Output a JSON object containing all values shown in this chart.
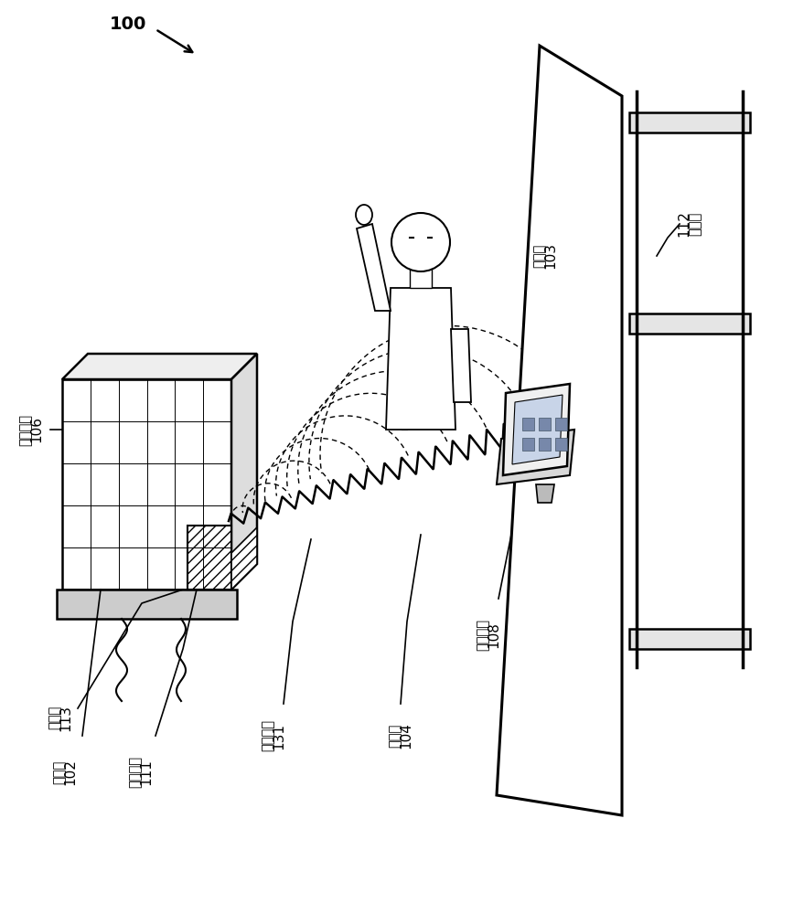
{
  "bg_color": "#ffffff",
  "line_color": "#000000",
  "text_transmitter": "发射机",
  "text_antenna": "天线阵列",
  "text_sensor": "传感器",
  "text_comm_comp": "通信部件",
  "text_power_wave": "功率波",
  "text_comm_signal": "通信信号",
  "text_receiver": "接收机",
  "text_electronic": "电子设备",
  "text_energy": "能量儲"
}
